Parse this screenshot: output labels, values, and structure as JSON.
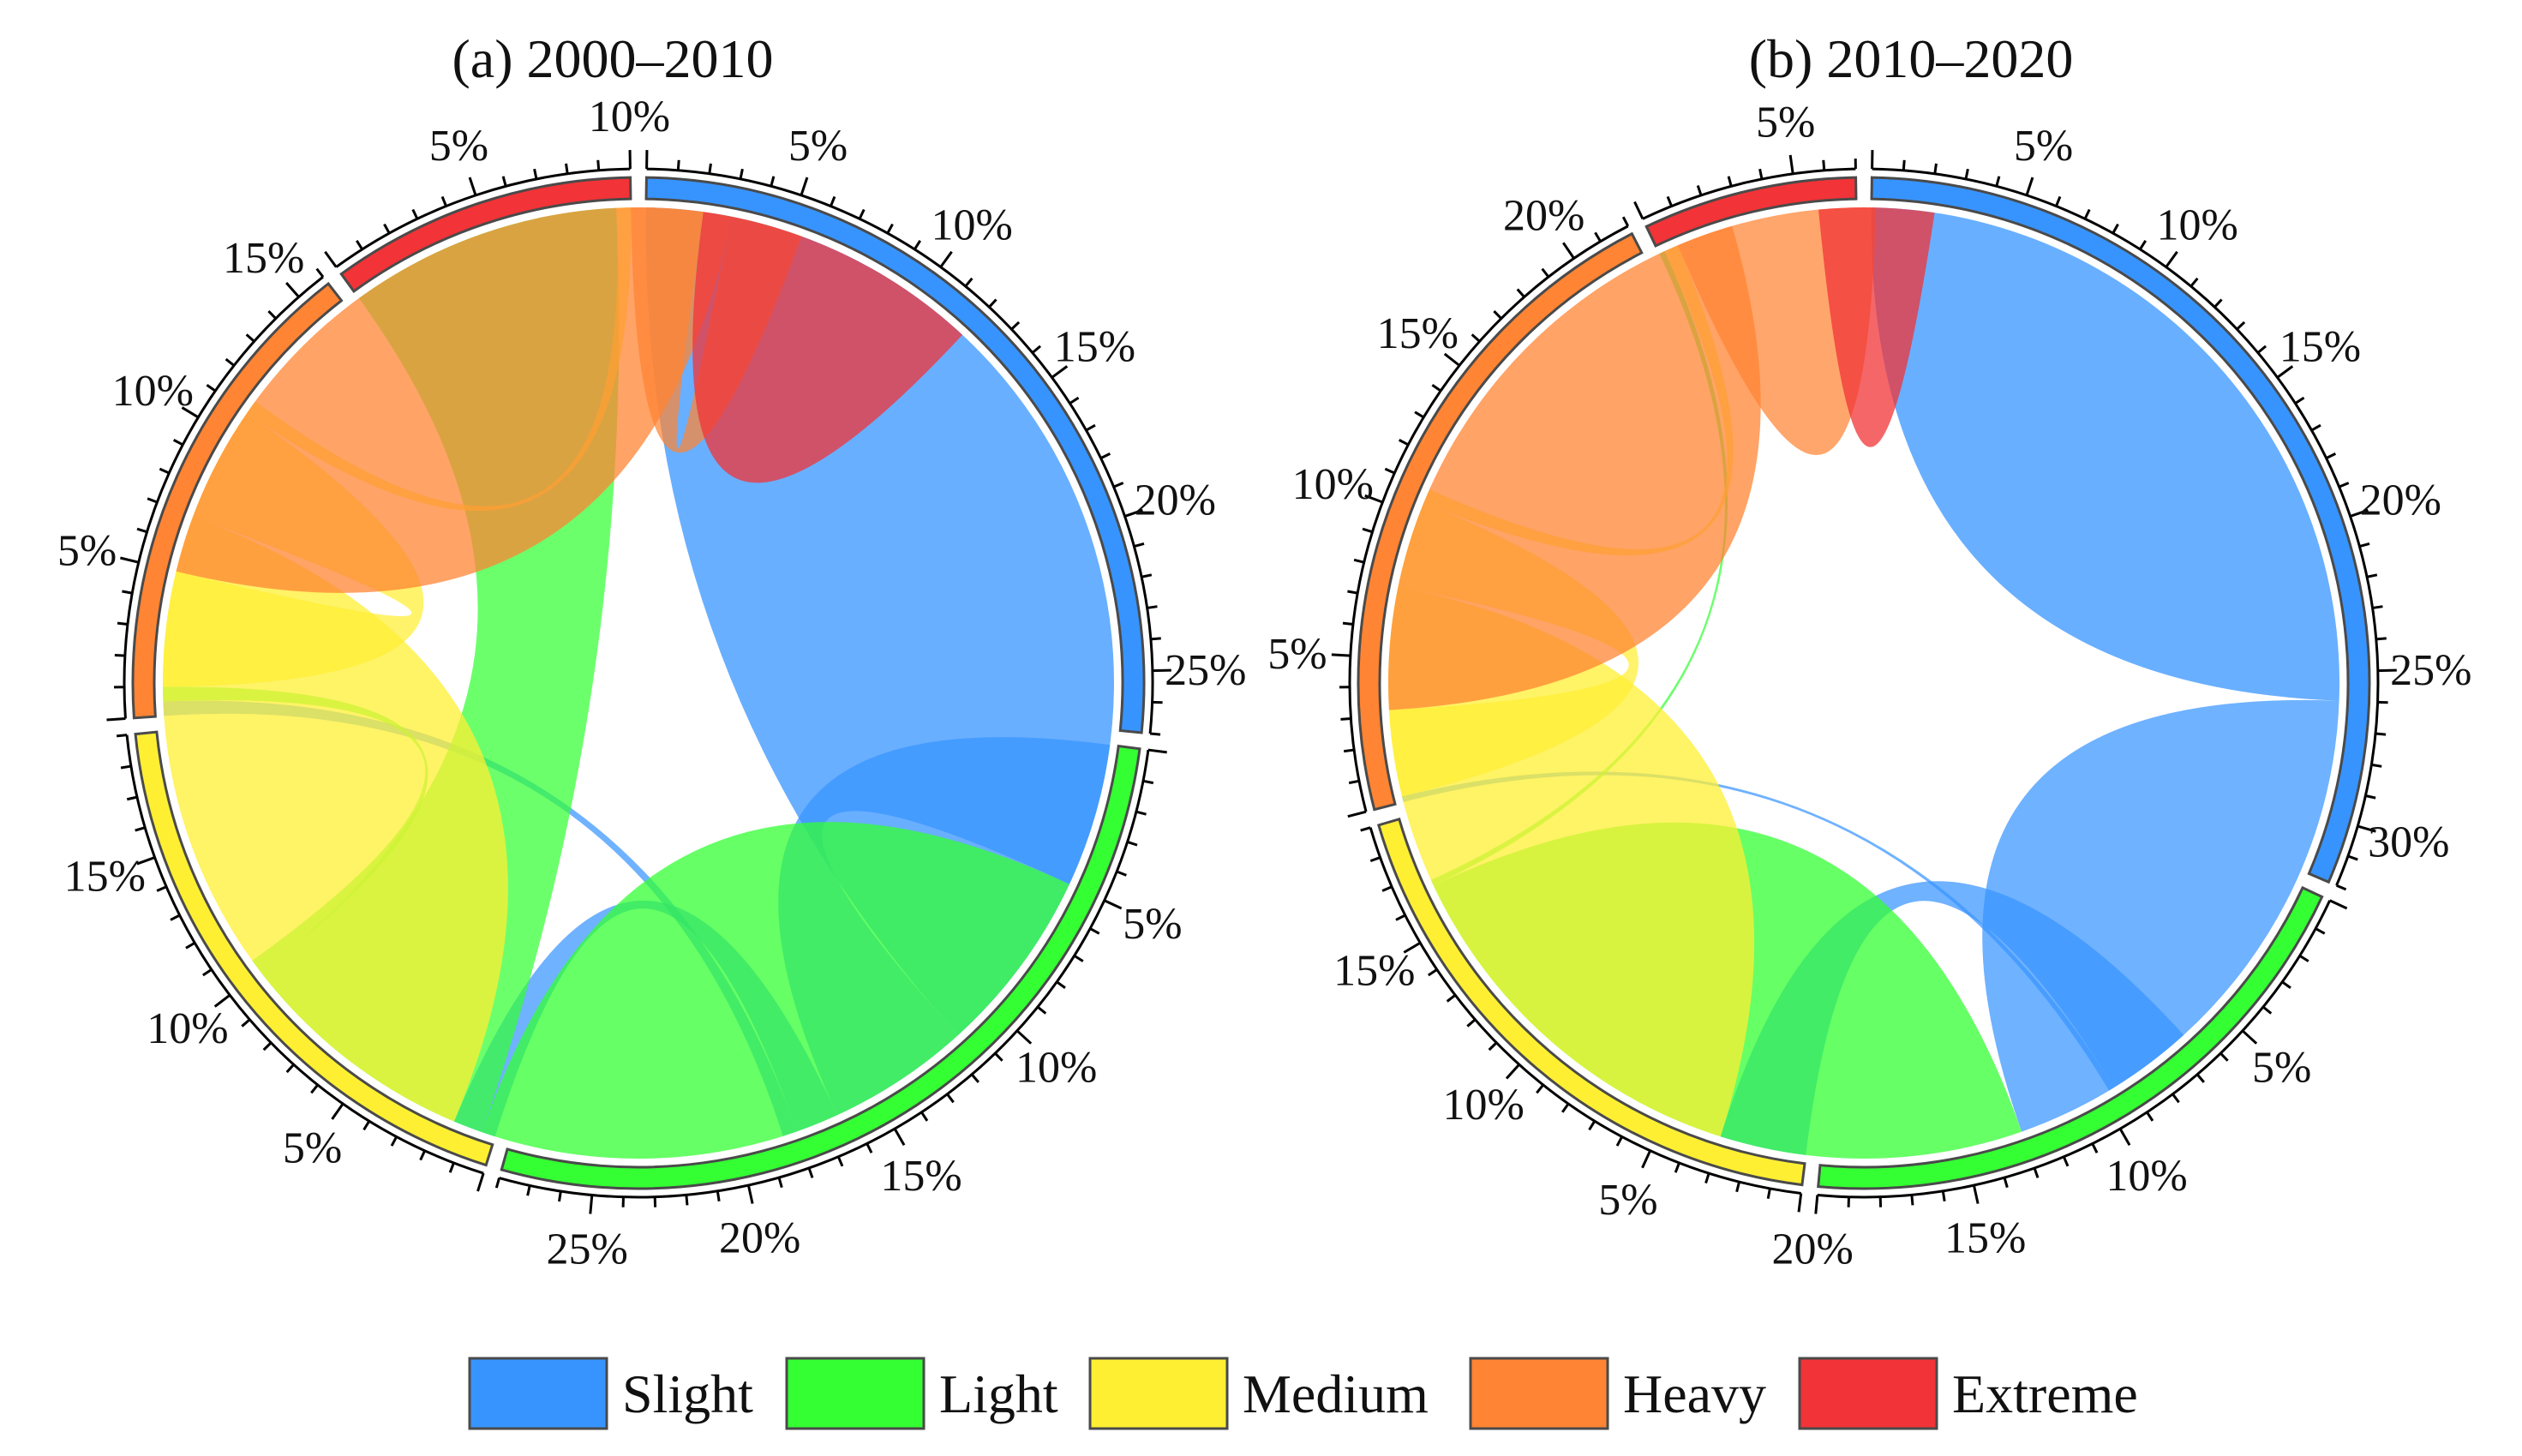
{
  "chart_data": [
    {
      "type": "chord",
      "title": "(a) 2000–2010",
      "unit": "%",
      "groups": [
        {
          "name": "Slight",
          "total": 27
        },
        {
          "name": "Light",
          "total": 28
        },
        {
          "name": "Medium",
          "total": 19
        },
        {
          "name": "Heavy",
          "total": 16
        },
        {
          "name": "Extreme",
          "total": 10
        }
      ],
      "group_tick_labels": [
        [
          "5%",
          "10%",
          "15%",
          "20%",
          "25%"
        ],
        [
          "5%",
          "10%",
          "15%",
          "20%",
          "25%"
        ],
        [
          "5%",
          "10%",
          "15%"
        ],
        [
          "5%",
          "10%",
          "15%"
        ],
        [
          "5%",
          "10%"
        ]
      ],
      "flows": [
        {
          "from": "Slight",
          "to": "Slight",
          "value": 19.5
        },
        {
          "from": "Slight",
          "to": "Light",
          "value": 5
        },
        {
          "from": "Slight",
          "to": "Medium",
          "value": 1.5
        },
        {
          "from": "Slight",
          "to": "Heavy",
          "value": 0.5
        },
        {
          "from": "Light",
          "to": "Light",
          "value": 12
        },
        {
          "from": "Light",
          "to": "Extreme",
          "value": 9.5
        },
        {
          "from": "Light",
          "to": "Heavy",
          "value": 0.5
        },
        {
          "from": "Medium",
          "to": "Medium",
          "value": 12.5
        },
        {
          "from": "Medium",
          "to": "Heavy",
          "value": 4
        },
        {
          "from": "Medium",
          "to": "Extreme",
          "value": 0.5
        },
        {
          "from": "Heavy",
          "to": "Heavy",
          "value": 12.5
        },
        {
          "from": "Heavy",
          "to": "Extreme",
          "value": 2.5
        },
        {
          "from": "Extreme",
          "to": "Extreme",
          "value": 5
        }
      ]
    },
    {
      "type": "chord",
      "title": "(b) 2010–2020",
      "unit": "%",
      "groups": [
        {
          "name": "Slight",
          "total": 32
        },
        {
          "name": "Light",
          "total": 20
        },
        {
          "name": "Medium",
          "total": 19
        },
        {
          "name": "Heavy",
          "total": 22
        },
        {
          "name": "Extreme",
          "total": 7
        }
      ],
      "group_tick_labels": [
        [
          "5%",
          "10%",
          "15%",
          "20%",
          "25%",
          "30%"
        ],
        [
          "5%",
          "10%",
          "15%",
          "20%"
        ],
        [
          "5%",
          "10%",
          "15%"
        ],
        [
          "5%",
          "10%",
          "15%",
          "20%"
        ],
        [
          "5%"
        ]
      ],
      "flows": [
        {
          "from": "Slight",
          "to": "Slight",
          "value": 13
        },
        {
          "from": "Slight",
          "to": "Light",
          "value": 13
        },
        {
          "from": "Slight",
          "to": "Medium",
          "value": 3
        },
        {
          "from": "Slight",
          "to": "Heavy",
          "value": 0.2
        },
        {
          "from": "Light",
          "to": "Light",
          "value": 12
        },
        {
          "from": "Light",
          "to": "Extreme",
          "value": 0.2
        },
        {
          "from": "Medium",
          "to": "Medium",
          "value": 12
        },
        {
          "from": "Medium",
          "to": "Heavy",
          "value": 3
        },
        {
          "from": "Medium",
          "to": "Extreme",
          "value": 0.5
        },
        {
          "from": "Heavy",
          "to": "Heavy",
          "value": 11
        },
        {
          "from": "Heavy",
          "to": "Extreme",
          "value": 5
        },
        {
          "from": "Extreme",
          "to": "Extreme",
          "value": 2
        }
      ]
    }
  ],
  "legend": [
    {
      "name": "Slight",
      "color": "#3794ff"
    },
    {
      "name": "Light",
      "color": "#33ff33"
    },
    {
      "name": "Medium",
      "color": "#ffef33"
    },
    {
      "name": "Heavy",
      "color": "#ff8433"
    },
    {
      "name": "Extreme",
      "color": "#f23337"
    }
  ]
}
